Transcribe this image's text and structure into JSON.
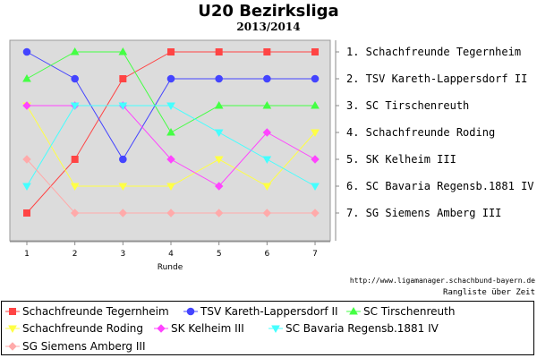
{
  "chart_data": {
    "type": "line",
    "title": "U20 Bezirksliga",
    "subtitle": "2013/2014",
    "xlabel": "Runde",
    "x": [
      1,
      2,
      3,
      4,
      5,
      6,
      7
    ],
    "x_ticks": [
      "1",
      "2",
      "3",
      "4",
      "5",
      "6",
      "7"
    ],
    "ylim": [
      1,
      7
    ],
    "y_inverted": true,
    "grid": false,
    "plot_background": "#dcdcdc",
    "legend_position": "bottom",
    "rank_labels": [
      "1.  Schachfreunde Tegernheim",
      "2.  TSV Kareth-Lappersdorf II",
      "3.  SC Tirschenreuth",
      "4.  Schachfreunde Roding",
      "5.  SK Kelheim III",
      "6.  SC Bavaria Regensb.1881 IV",
      "7.  SG Siemens Amberg III"
    ],
    "series": [
      {
        "name": "Schachfreunde Tegernheim",
        "color": "#ff4444",
        "marker": "square",
        "values": [
          7,
          5,
          2,
          1,
          1,
          1,
          1
        ]
      },
      {
        "name": "TSV Kareth-Lappersdorf II",
        "color": "#4444ff",
        "marker": "circle",
        "values": [
          1,
          2,
          5,
          2,
          2,
          2,
          2
        ]
      },
      {
        "name": "SC Tirschenreuth",
        "color": "#44ff44",
        "marker": "triangle-up",
        "values": [
          2,
          1,
          1,
          4,
          3,
          3,
          3
        ]
      },
      {
        "name": "Schachfreunde Roding",
        "color": "#ffff44",
        "marker": "triangle-down",
        "values": [
          3,
          6,
          6,
          6,
          5,
          6,
          4
        ]
      },
      {
        "name": "SK Kelheim III",
        "color": "#ff44ff",
        "marker": "diamond",
        "values": [
          3,
          3,
          3,
          5,
          6,
          4,
          5
        ]
      },
      {
        "name": "SC Bavaria Regensb.1881 IV",
        "color": "#44ffff",
        "marker": "triangle-down",
        "values": [
          6,
          3,
          3,
          3,
          4,
          5,
          6
        ]
      },
      {
        "name": "SG Siemens Amberg III",
        "color": "#ffaaaa",
        "marker": "diamond",
        "values": [
          5,
          7,
          7,
          7,
          7,
          7,
          7
        ]
      }
    ]
  },
  "footer": {
    "url": "http://www.ligamanager.schachbund-bayern.de",
    "subtitle": "Rangliste über Zeit"
  }
}
